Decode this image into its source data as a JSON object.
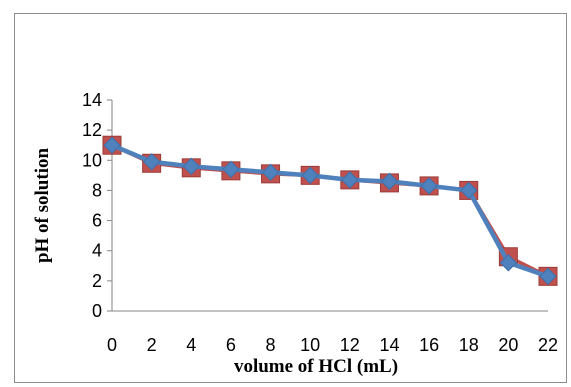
{
  "chart_data": {
    "type": "line",
    "title": "",
    "xlabel": "volume of HCl (mL)",
    "ylabel": "pH of solution",
    "xlim": [
      0,
      22
    ],
    "ylim": [
      0,
      14
    ],
    "x_ticks": [
      0,
      2,
      4,
      6,
      8,
      10,
      12,
      14,
      16,
      18,
      20,
      22
    ],
    "y_ticks": [
      0,
      2,
      4,
      6,
      8,
      10,
      12,
      14
    ],
    "grid": false,
    "legend": "none",
    "series": [
      {
        "marker": "square",
        "color": "#c0504d",
        "x": [
          0,
          2,
          4,
          6,
          8,
          10,
          12,
          14,
          16,
          18,
          20,
          22
        ],
        "y": [
          11.0,
          9.8,
          9.5,
          9.3,
          9.1,
          9.0,
          8.7,
          8.5,
          8.3,
          8.0,
          3.6,
          2.3
        ]
      },
      {
        "marker": "diamond",
        "color": "#4f81bd",
        "x": [
          0,
          2,
          4,
          6,
          8,
          10,
          12,
          14,
          16,
          18,
          20,
          22
        ],
        "y": [
          11.0,
          9.9,
          9.6,
          9.4,
          9.2,
          9.0,
          8.7,
          8.6,
          8.3,
          8.0,
          3.2,
          2.3
        ]
      }
    ]
  }
}
